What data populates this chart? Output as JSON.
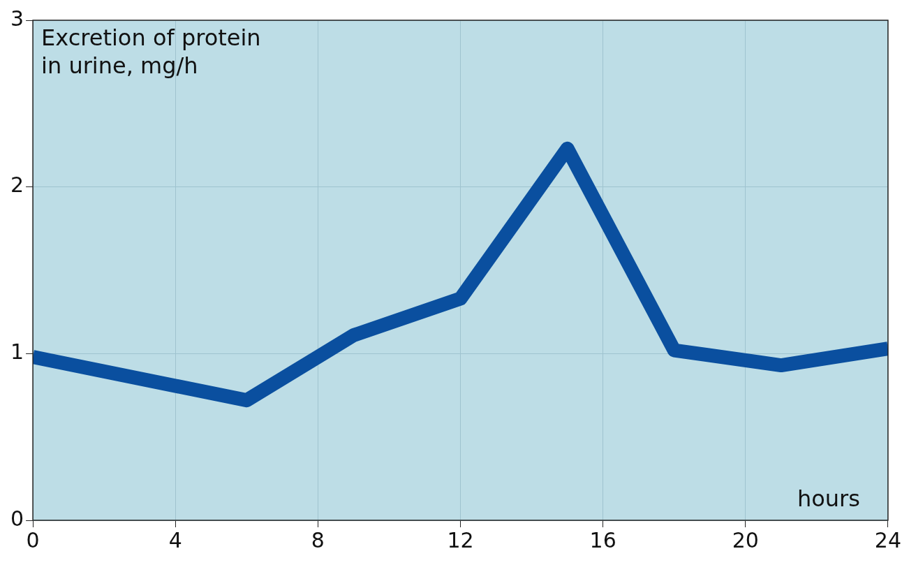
{
  "chart_data": {
    "type": "line",
    "xlabel": "hours",
    "ylabel": "Excretion of protein\nin urine, mg/h",
    "x": [
      0,
      6,
      9,
      12,
      15,
      18,
      21,
      24
    ],
    "series": [
      {
        "color": "#0a4f9f",
        "values": [
          0.98,
          0.72,
          1.11,
          1.33,
          2.23,
          1.02,
          0.93,
          1.03
        ]
      }
    ],
    "xlim": [
      0,
      24
    ],
    "xticks": [
      0,
      4,
      8,
      12,
      16,
      20,
      24
    ],
    "ylim": [
      0,
      3
    ],
    "yticks": [
      0,
      1,
      2,
      3
    ],
    "grid": true,
    "legend": false,
    "marker": "none",
    "line_style": "solid"
  }
}
